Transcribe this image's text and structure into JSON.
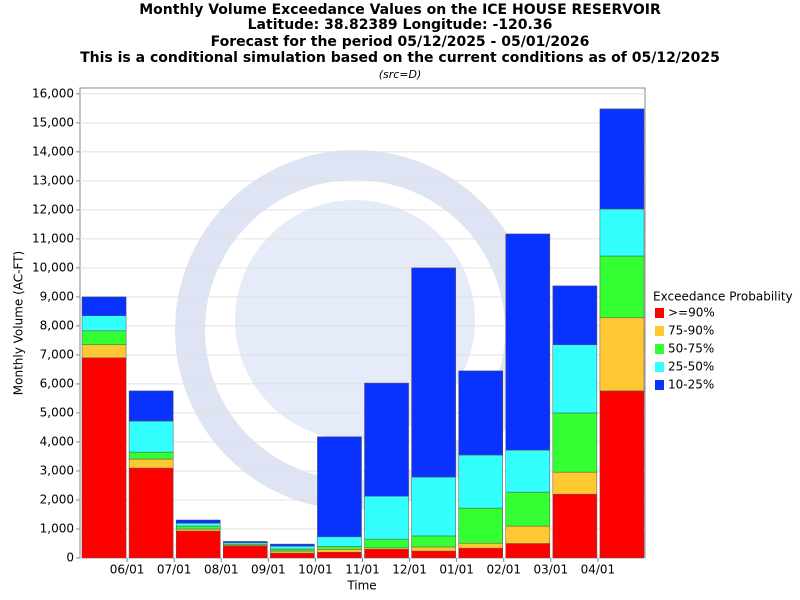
{
  "chart_data": {
    "type": "stacked_bar",
    "title": [
      "Monthly Volume Exceedance Values on the ICE HOUSE RESERVOIR",
      "Latitude: 38.82389 Longitude: -120.36",
      "Forecast for the period 05/12/2025 - 05/01/2026",
      "This is a conditional simulation based on the current conditions as of 05/12/2025"
    ],
    "subtitle": "(src=D)",
    "y_label": "Monthly Volume (AC-FT)",
    "x_label": "Time",
    "legend_title": "Exceedance Probability",
    "legend_position": "right",
    "xticks": [
      "06/01",
      "07/01",
      "08/01",
      "09/01",
      "10/01",
      "11/01",
      "12/01",
      "01/01",
      "02/01",
      "03/01",
      "04/01"
    ],
    "ylim": [
      0,
      16200
    ],
    "yticks": [
      0,
      {
        "value": 1000,
        "label": "1,000"
      },
      {
        "value": 2000,
        "label": "2,000"
      },
      {
        "value": 3000,
        "label": "3,000"
      },
      {
        "value": 4000,
        "label": "4,000"
      },
      {
        "value": 5000,
        "label": "5,000"
      },
      {
        "value": 6000,
        "label": "6,000"
      },
      {
        "value": 7000,
        "label": "7,000"
      },
      {
        "value": 8000,
        "label": "8,000"
      },
      {
        "value": 9000,
        "label": "9,000"
      },
      {
        "value": 10000,
        "label": "10,000"
      },
      {
        "value": 11000,
        "label": "11,000"
      },
      {
        "value": 12000,
        "label": "12,000"
      },
      {
        "value": 13000,
        "label": "13,000"
      },
      {
        "value": 14000,
        "label": "14,000"
      },
      {
        "value": 15000,
        "label": "15,000"
      },
      {
        "value": 16000,
        "label": "16,000"
      }
    ],
    "grid": true,
    "series": [
      {
        "name": ">=90%",
        "color": "#ff0000",
        "values": [
          6900,
          3100,
          930,
          410,
          170,
          200,
          300,
          240,
          340,
          500,
          2200,
          5760
        ]
      },
      {
        "name": "75-90%",
        "color": "#ffc833",
        "values": [
          450,
          310,
          70,
          30,
          70,
          100,
          50,
          140,
          170,
          600,
          760,
          2520
        ]
      },
      {
        "name": "50-75%",
        "color": "#33ff33",
        "values": [
          480,
          240,
          100,
          40,
          70,
          100,
          300,
          380,
          1210,
          1170,
          2040,
          2130
        ]
      },
      {
        "name": "25-50%",
        "color": "#33ffff",
        "values": [
          520,
          1070,
          100,
          50,
          100,
          330,
          1480,
          2030,
          1830,
          1450,
          2350,
          1620
        ]
      },
      {
        "name": "10-25%",
        "color": "#0a32ff",
        "values": [
          650,
          1040,
          110,
          40,
          70,
          3450,
          3900,
          7210,
          2900,
          7450,
          2030,
          3450
        ]
      }
    ]
  }
}
